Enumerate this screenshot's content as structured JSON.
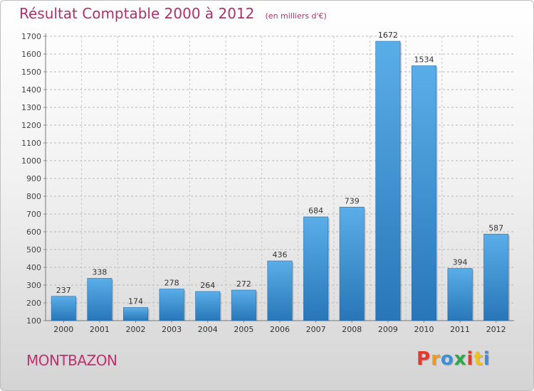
{
  "header": {
    "title": "Résultat Comptable 2000 à 2012",
    "subtitle": "(en milliers d'€)"
  },
  "location": "MONTBAZON",
  "logo": {
    "letters": [
      "P",
      "r",
      "o",
      "x",
      "i",
      "t",
      "i"
    ],
    "colors": [
      "#e23a2c",
      "#f29a1c",
      "#3d8fd6",
      "#2aa84a",
      "#e23a2c",
      "#f2c01c",
      "#3d8fd6"
    ]
  },
  "chart_data": {
    "type": "bar",
    "title": "Résultat Comptable 2000 à 2012",
    "subtitle": "(en milliers d'€)",
    "xlabel": "",
    "ylabel": "",
    "categories": [
      "2000",
      "2001",
      "2002",
      "2003",
      "2004",
      "2005",
      "2006",
      "2007",
      "2008",
      "2009",
      "2010",
      "2011",
      "2012"
    ],
    "values": [
      237,
      338,
      174,
      278,
      264,
      272,
      436,
      684,
      739,
      1672,
      1534,
      394,
      587
    ],
    "ylim": [
      100,
      1700
    ],
    "yticks": [
      100,
      200,
      300,
      400,
      500,
      600,
      700,
      800,
      900,
      1000,
      1100,
      1200,
      1300,
      1400,
      1500,
      1600,
      1700
    ],
    "grid": true,
    "bar_color": "#3a95d8"
  }
}
